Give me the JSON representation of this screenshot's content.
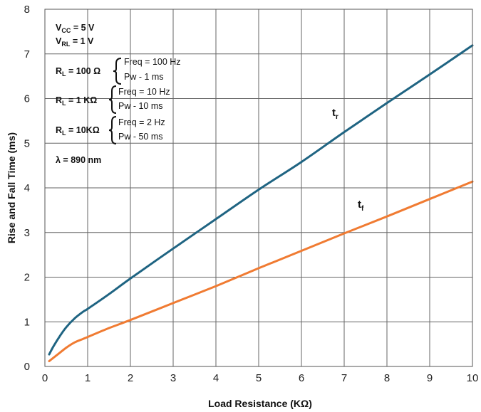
{
  "chart_data": {
    "type": "line",
    "xlabel": "Load Resistance  (KΩ)",
    "ylabel": "Rise and Fall Time (ms)",
    "xlim": [
      0,
      10
    ],
    "ylim": [
      0,
      8
    ],
    "x_ticks": [
      "0",
      "1",
      "2",
      "3",
      "4",
      "5",
      "6",
      "7",
      "8",
      "9",
      "10"
    ],
    "y_ticks": [
      "0",
      "1",
      "2",
      "3",
      "4",
      "5",
      "6",
      "7",
      "8"
    ],
    "grid": true,
    "series": [
      {
        "name": "t_r",
        "color": "#1f6482",
        "points": [
          [
            0.1,
            0.27
          ],
          [
            0.2,
            0.45
          ],
          [
            0.35,
            0.68
          ],
          [
            0.5,
            0.88
          ],
          [
            0.7,
            1.08
          ],
          [
            0.9,
            1.23
          ],
          [
            1.0,
            1.29
          ],
          [
            1.5,
            1.62
          ],
          [
            2.0,
            1.97
          ],
          [
            3.0,
            2.64
          ],
          [
            4.0,
            3.3
          ],
          [
            5.0,
            3.96
          ],
          [
            6.0,
            4.58
          ],
          [
            7.0,
            5.25
          ],
          [
            8.0,
            5.9
          ],
          [
            9.0,
            6.54
          ],
          [
            10.0,
            7.19
          ]
        ]
      },
      {
        "name": "t_f",
        "color": "#f07b32",
        "points": [
          [
            0.1,
            0.12
          ],
          [
            0.3,
            0.27
          ],
          [
            0.5,
            0.42
          ],
          [
            0.7,
            0.54
          ],
          [
            0.9,
            0.62
          ],
          [
            1.0,
            0.66
          ],
          [
            1.5,
            0.86
          ],
          [
            2.0,
            1.04
          ],
          [
            3.0,
            1.42
          ],
          [
            4.0,
            1.8
          ],
          [
            5.0,
            2.2
          ],
          [
            6.0,
            2.59
          ],
          [
            7.0,
            2.98
          ],
          [
            8.0,
            3.36
          ],
          [
            9.0,
            3.75
          ],
          [
            10.0,
            4.14
          ]
        ]
      }
    ],
    "curve_labels": {
      "tr_main": "t",
      "tr_sub": "r",
      "tf_main": "t",
      "tf_sub": "f"
    },
    "annotations": {
      "vcc_main": "V",
      "vcc_sub": "CC",
      "vcc_val": " = 5 V",
      "vrl_main": "V",
      "vrl_sub": "RL",
      "vrl_val": " = 1 V",
      "rl1_main": "R",
      "rl1_sub": "L",
      "rl1_val": " = 100 Ω",
      "rl1_freq": "Freq = 100 Hz",
      "rl1_pw": "Pw - 1 ms",
      "rl2_main": "R",
      "rl2_sub": "L",
      "rl2_val": " = 1 KΩ",
      "rl2_freq": "Freq = 10 Hz",
      "rl2_pw": "Pw - 10 ms",
      "rl3_main": "R",
      "rl3_sub": "L",
      "rl3_val": " = 10KΩ",
      "rl3_freq": "Freq = 2  Hz",
      "rl3_pw": "Pw - 50 ms",
      "lambda": "λ = 890 nm"
    }
  }
}
